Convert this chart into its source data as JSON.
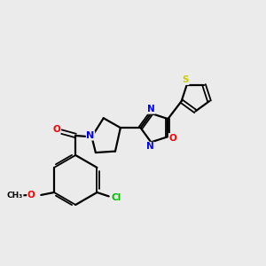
{
  "bg_color": "#ebebeb",
  "bond_color": "#000000",
  "atom_colors": {
    "O": "#ff0000",
    "N": "#0000ff",
    "S": "#cccc00",
    "Cl": "#00bb00",
    "C": "#000000"
  },
  "figsize": [
    3.0,
    3.0
  ],
  "dpi": 100,
  "xlim": [
    0,
    10
  ],
  "ylim": [
    0,
    10
  ]
}
